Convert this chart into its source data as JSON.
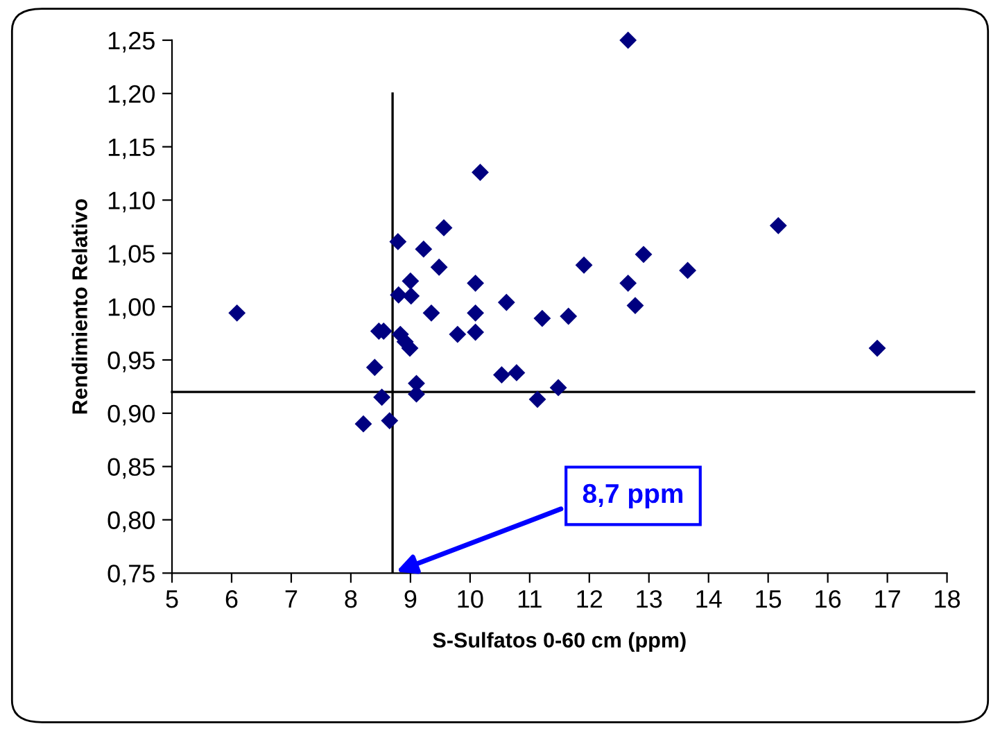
{
  "chart_data": {
    "type": "scatter",
    "xlabel": "S-Sulfatos 0-60 cm (ppm)",
    "ylabel": "Rendimiento Relativo",
    "marker": "diamond",
    "grid": false,
    "legend": false,
    "series": [
      {
        "color": "#000080",
        "x": [
          8.79,
          9.22,
          9.56,
          10.17,
          9.48,
          9.0,
          10.09,
          6.09,
          8.8,
          9.01,
          9.35,
          10.09,
          10.61,
          11.21,
          11.65,
          8.47,
          8.55,
          8.83,
          8.91,
          8.99,
          9.79,
          10.09,
          8.4,
          10.53,
          10.78,
          9.1,
          9.1,
          11.48,
          11.13,
          8.52,
          8.21,
          8.65,
          12.65,
          15.17,
          11.91,
          12.91,
          12.65,
          12.77,
          13.65,
          16.83
        ],
        "values": [
          1.061,
          1.054,
          1.074,
          1.126,
          1.037,
          1.024,
          1.022,
          0.994,
          1.011,
          1.01,
          0.994,
          0.994,
          1.004,
          0.989,
          0.991,
          0.977,
          0.977,
          0.974,
          0.967,
          0.961,
          0.974,
          0.976,
          0.943,
          0.936,
          0.938,
          0.928,
          0.918,
          0.924,
          0.913,
          0.915,
          0.89,
          0.893,
          1.25,
          1.076,
          1.039,
          1.049,
          1.022,
          1.001,
          1.034,
          0.961
        ]
      }
    ],
    "xlim": [
      5,
      18
    ],
    "xticks": [
      5,
      6,
      7,
      8,
      9,
      10,
      11,
      12,
      13,
      14,
      15,
      16,
      17,
      18
    ],
    "ylim": [
      0.75,
      1.25
    ],
    "yticks": [
      {
        "value": 0.75,
        "label": "0,75"
      },
      {
        "value": 0.8,
        "label": "0,80"
      },
      {
        "value": 0.85,
        "label": "0,85"
      },
      {
        "value": 0.9,
        "label": "0,90"
      },
      {
        "value": 0.95,
        "label": "0,95"
      },
      {
        "value": 1.0,
        "label": "1,00"
      },
      {
        "value": 1.05,
        "label": "1,05"
      },
      {
        "value": 1.1,
        "label": "1,10"
      },
      {
        "value": 1.15,
        "label": "1,15"
      },
      {
        "value": 1.2,
        "label": "1,20"
      },
      {
        "value": 1.25,
        "label": "1,25"
      }
    ],
    "ref_lines": [
      {
        "axis": "x",
        "value": 8.7,
        "color": "#000000"
      },
      {
        "axis": "y",
        "value": 0.92,
        "color": "#000000"
      }
    ],
    "annotations": [
      "8,7 ppm"
    ]
  }
}
